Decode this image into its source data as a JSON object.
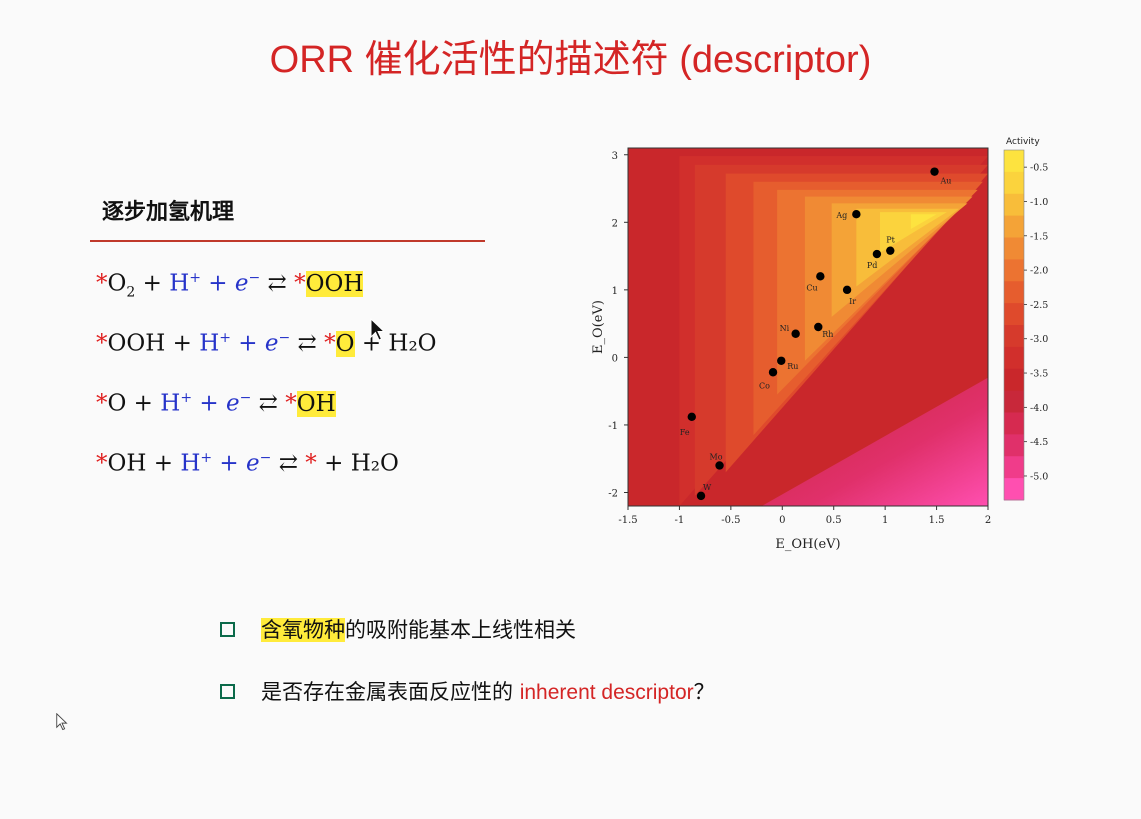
{
  "title": "ORR 催化活性的描述符 (descriptor)",
  "section_heading": "逐步加氢机理",
  "equations": [
    {
      "star": "*",
      "a": "O",
      "a_sub": "2",
      "plus1": " + ",
      "h": "H",
      "h_sup": "+",
      "plus2": " + ",
      "e": "e",
      "e_sup": "−",
      "arrow": " ⇄ ",
      "star2": "*",
      "product": "OOH",
      "product_tail": ""
    },
    {
      "star": "*",
      "a": "OOH",
      "a_sub": "",
      "plus1": " + ",
      "h": "H",
      "h_sup": "+",
      "plus2": " + ",
      "e": "e",
      "e_sup": "−",
      "arrow": " ⇄ ",
      "star2": "*",
      "product": "O",
      "product_tail": " + H₂O"
    },
    {
      "star": "*",
      "a": "O",
      "a_sub": "",
      "plus1": " + ",
      "h": "H",
      "h_sup": "+",
      "plus2": " + ",
      "e": "e",
      "e_sup": "−",
      "arrow": " ⇄ ",
      "star2": "*",
      "product": "OH",
      "product_tail": ""
    },
    {
      "star": "*",
      "a": "OH",
      "a_sub": "",
      "plus1": " + ",
      "h": "H",
      "h_sup": "+",
      "plus2": " + ",
      "e": "e",
      "e_sup": "−",
      "arrow": " ⇄ ",
      "star2": "*",
      "product": "",
      "product_tail": " + H₂O"
    }
  ],
  "bullets": [
    {
      "highlight": "含氧物种",
      "text": "的吸附能基本上线性相关",
      "red": "",
      "tail": ""
    },
    {
      "highlight": "",
      "text": "是否存在金属表面反应性的 ",
      "red": "inherent descriptor",
      "tail": "？"
    }
  ],
  "colors": {
    "accent_red": "#d42525",
    "bullet_green": "#0b6a4a",
    "highlight_yellow": "#ffeb3b"
  },
  "chart_data": {
    "type": "heatmap",
    "xlabel": "E_OH(eV)",
    "ylabel": "E_O(eV)",
    "xlim": [
      -1.5,
      2
    ],
    "ylim": [
      -2.2,
      3.1
    ],
    "xticks": [
      "-1.5",
      "-1",
      "-0.5",
      "0",
      "0.5",
      "1",
      "1.5",
      "2"
    ],
    "yticks": [
      "3",
      "2",
      "1",
      "0",
      "-1",
      "-2"
    ],
    "colorbar_title": "Activity",
    "colorbar_ticks": [
      "-0.5",
      "-1.0",
      "-1.5",
      "-2.0",
      "-2.5",
      "-3.0",
      "-3.5",
      "-4.0",
      "-4.5",
      "-5.0"
    ],
    "points": [
      {
        "label": "Au",
        "x": 1.48,
        "y": 2.75
      },
      {
        "label": "Ag",
        "x": 0.72,
        "y": 2.12
      },
      {
        "label": "Pt",
        "x": 1.05,
        "y": 1.58
      },
      {
        "label": "Pd",
        "x": 0.92,
        "y": 1.53
      },
      {
        "label": "Cu",
        "x": 0.37,
        "y": 1.2
      },
      {
        "label": "Ir",
        "x": 0.63,
        "y": 1.0
      },
      {
        "label": "Ni",
        "x": 0.13,
        "y": 0.35
      },
      {
        "label": "Rh",
        "x": 0.35,
        "y": 0.45
      },
      {
        "label": "Ru",
        "x": -0.01,
        "y": -0.05
      },
      {
        "label": "Co",
        "x": -0.09,
        "y": -0.22
      },
      {
        "label": "Fe",
        "x": -0.88,
        "y": -0.88
      },
      {
        "label": "Mo",
        "x": -0.61,
        "y": -1.6
      },
      {
        "label": "W",
        "x": -0.79,
        "y": -2.05
      }
    ]
  }
}
